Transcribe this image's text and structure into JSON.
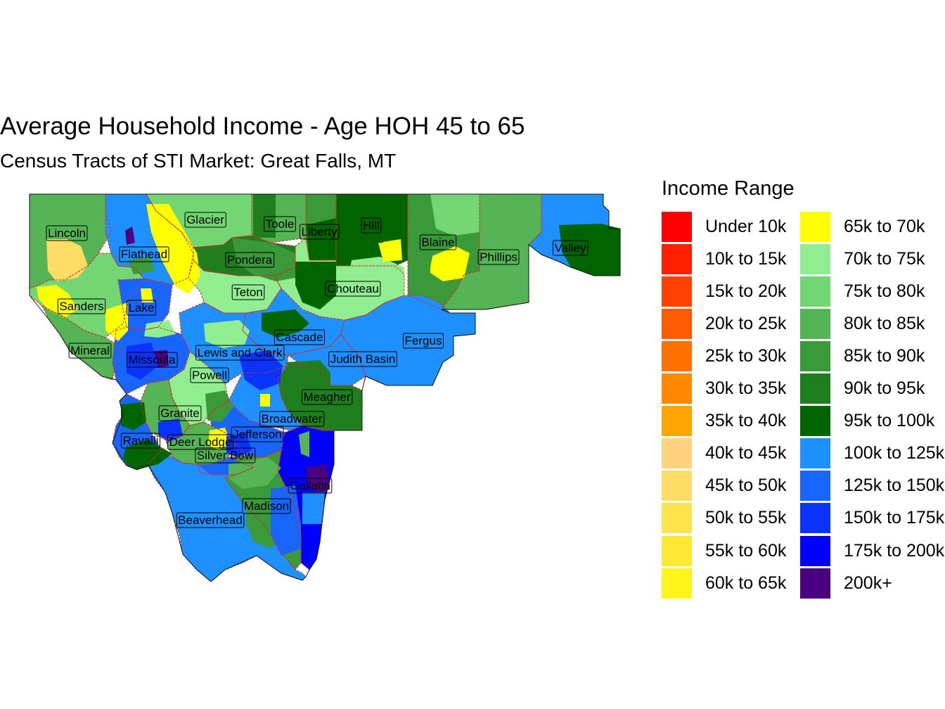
{
  "title": "Average Household Income - Age HOH 45 to 65",
  "subtitle": "Census Tracts of STI Market: Great Falls, MT",
  "legend": {
    "title": "Income Range",
    "items": [
      {
        "label": "Under 10k",
        "color": "#FF0000"
      },
      {
        "label": "10k to 15k",
        "color": "#FF2000"
      },
      {
        "label": "15k to 20k",
        "color": "#FF4000"
      },
      {
        "label": "20k to 25k",
        "color": "#FF5A00"
      },
      {
        "label": "25k to 30k",
        "color": "#FF7000"
      },
      {
        "label": "30k to 35k",
        "color": "#FF8800"
      },
      {
        "label": "35k to 40k",
        "color": "#FFA500"
      },
      {
        "label": "40k to 45k",
        "color": "#FFD27F"
      },
      {
        "label": "45k to 50k",
        "color": "#FFDC66"
      },
      {
        "label": "50k to 55k",
        "color": "#FFE34D"
      },
      {
        "label": "55k to 60k",
        "color": "#FFE833"
      },
      {
        "label": "60k to 65k",
        "color": "#FFF41A"
      },
      {
        "label": "65k to 70k",
        "color": "#FFFF00"
      },
      {
        "label": "70k to 75k",
        "color": "#90EE90"
      },
      {
        "label": "75k to 80k",
        "color": "#72D672"
      },
      {
        "label": "80k to 85k",
        "color": "#55B455"
      },
      {
        "label": "85k to 90k",
        "color": "#3A9A3A"
      },
      {
        "label": "90k to 95k",
        "color": "#1F7F1F"
      },
      {
        "label": "95k to 100k",
        "color": "#006400"
      },
      {
        "label": "100k to 125k",
        "color": "#1E90FF"
      },
      {
        "label": "125k to 150k",
        "color": "#1866FF"
      },
      {
        "label": "150k to 175k",
        "color": "#0A33FF"
      },
      {
        "label": "175k to 200k",
        "color": "#0000FF"
      },
      {
        "label": "200k+",
        "color": "#4B0082"
      }
    ]
  },
  "counties": [
    {
      "name": "Lincoln",
      "color": "#55B455"
    },
    {
      "name": "Flathead",
      "color": "#1E90FF"
    },
    {
      "name": "Glacier",
      "color": "#72D672"
    },
    {
      "name": "Toole",
      "color": "#55B455"
    },
    {
      "name": "Liberty",
      "color": "#3A9A3A"
    },
    {
      "name": "Hill",
      "color": "#006400"
    },
    {
      "name": "Blaine",
      "color": "#3A9A3A"
    },
    {
      "name": "Phillips",
      "color": "#55B455"
    },
    {
      "name": "Valley",
      "color": "#1E90FF"
    },
    {
      "name": "Pondera",
      "color": "#1F7F1F"
    },
    {
      "name": "Teton",
      "color": "#90EE90"
    },
    {
      "name": "Chouteau",
      "color": "#90EE90"
    },
    {
      "name": "Sanders",
      "color": "#72D672"
    },
    {
      "name": "Lake",
      "color": "#1866FF"
    },
    {
      "name": "Cascade",
      "color": "#1E90FF"
    },
    {
      "name": "Fergus",
      "color": "#1E90FF"
    },
    {
      "name": "Mineral",
      "color": "#55B455"
    },
    {
      "name": "Lewis and Clark",
      "color": "#1E90FF"
    },
    {
      "name": "Judith Basin",
      "color": "#1E90FF"
    },
    {
      "name": "Missoula",
      "color": "#1866FF"
    },
    {
      "name": "Powell",
      "color": "#90EE90"
    },
    {
      "name": "Meagher",
      "color": "#1F7F1F"
    },
    {
      "name": "Granite",
      "color": "#55B455"
    },
    {
      "name": "Broadwater",
      "color": "#1E90FF"
    },
    {
      "name": "Jefferson",
      "color": "#1866FF"
    },
    {
      "name": "Ravalli",
      "color": "#1866FF"
    },
    {
      "name": "Deer Lodge",
      "color": "#55B455"
    },
    {
      "name": "Silver Bow",
      "color": "#1866FF"
    },
    {
      "name": "Gallatin",
      "color": "#0000FF"
    },
    {
      "name": "Madison",
      "color": "#3A9A3A"
    },
    {
      "name": "Beaverhead",
      "color": "#1E90FF"
    }
  ]
}
